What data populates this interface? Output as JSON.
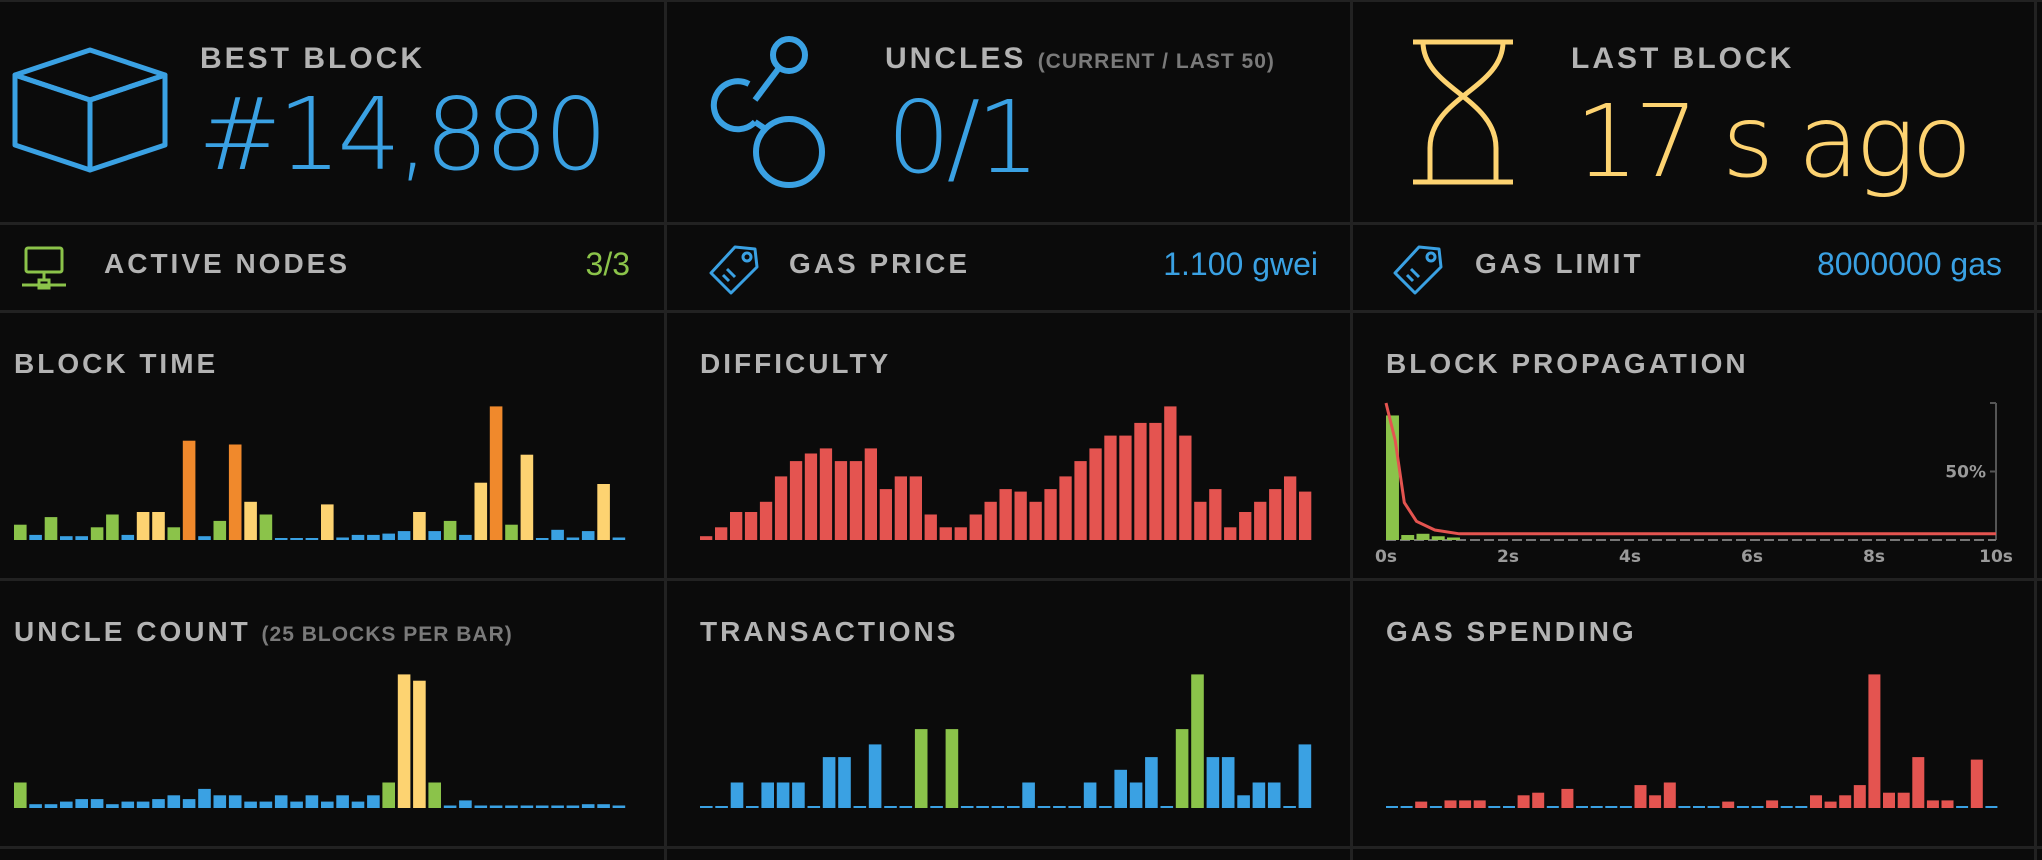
{
  "colors": {
    "blue": "#3aa1e3",
    "green": "#8bc34a",
    "orange": "#f0892c",
    "yellow": "#fdd371",
    "red": "#e45450",
    "dim": "#7a7a7a"
  },
  "stats": {
    "best_block": {
      "label": "BEST BLOCK",
      "value": "#14,880",
      "icon": "cube-icon"
    },
    "uncles": {
      "label": "UNCLES",
      "sublabel": "(CURRENT / LAST 50)",
      "value": "0/1",
      "icon": "uncles-icon"
    },
    "last_block": {
      "label": "LAST BLOCK",
      "value": "17 s ago",
      "icon": "hourglass-icon"
    }
  },
  "info": {
    "active_nodes": {
      "label": "ACTIVE NODES",
      "value": "3/3",
      "icon": "network-icon"
    },
    "gas_price": {
      "label": "GAS PRICE",
      "value": "1.100 gwei",
      "icon": "tag-icon"
    },
    "gas_limit": {
      "label": "GAS LIMIT",
      "value": "8000000 gas",
      "icon": "tag-icon"
    }
  },
  "chart_data": [
    {
      "id": "block_time",
      "type": "bar",
      "title": "BLOCK TIME",
      "values": [
        12,
        4,
        18,
        3,
        3,
        10,
        20,
        4,
        22,
        22,
        10,
        78,
        3,
        15,
        75,
        30,
        20,
        1,
        1,
        1,
        28,
        2,
        4,
        4,
        5,
        7,
        22,
        7,
        15,
        4,
        45,
        105,
        12,
        67,
        1,
        8,
        2,
        7,
        44,
        2
      ],
      "colors": [
        "green",
        "blue",
        "green",
        "blue",
        "blue",
        "green",
        "green",
        "blue",
        "yellow",
        "yellow",
        "green",
        "orange",
        "blue",
        "green",
        "orange",
        "yellow",
        "green",
        "blue",
        "blue",
        "blue",
        "yellow",
        "blue",
        "blue",
        "blue",
        "blue",
        "blue",
        "yellow",
        "blue",
        "green",
        "blue",
        "yellow",
        "orange",
        "green",
        "yellow",
        "blue",
        "blue",
        "blue",
        "blue",
        "yellow",
        "blue"
      ]
    },
    {
      "id": "difficulty",
      "type": "bar",
      "title": "DIFFICULTY",
      "values": [
        3,
        10,
        22,
        22,
        30,
        50,
        62,
        68,
        72,
        62,
        62,
        72,
        40,
        50,
        50,
        20,
        10,
        10,
        20,
        30,
        40,
        38,
        30,
        40,
        50,
        62,
        72,
        82,
        82,
        92,
        92,
        105,
        82,
        30,
        40,
        10,
        22,
        30,
        40,
        50,
        38
      ],
      "colors": [
        "red"
      ]
    },
    {
      "id": "block_propagation",
      "type": "histogram",
      "title": "BLOCK PROPAGATION",
      "x_ticks": [
        "0s",
        "2s",
        "4s",
        "6s",
        "8s",
        "10s"
      ],
      "y_tick": "50%",
      "bars": [
        {
          "x": 0.0,
          "value": 100,
          "color": "green"
        },
        {
          "x": 0.25,
          "value": 4,
          "color": "green"
        },
        {
          "x": 0.5,
          "value": 5,
          "color": "green"
        },
        {
          "x": 0.75,
          "value": 3,
          "color": "green"
        },
        {
          "x": 1.0,
          "value": 2,
          "color": "green"
        }
      ],
      "curve": [
        [
          0.0,
          110
        ],
        [
          0.15,
          80
        ],
        [
          0.3,
          30
        ],
        [
          0.5,
          15
        ],
        [
          0.8,
          8
        ],
        [
          1.2,
          5
        ],
        [
          2,
          5
        ],
        [
          4,
          5
        ],
        [
          6,
          5
        ],
        [
          8,
          5
        ],
        [
          10,
          5
        ]
      ]
    },
    {
      "id": "uncle_count",
      "type": "bar",
      "title": "UNCLE COUNT",
      "subtitle": "(25 BLOCKS PER BAR)",
      "values": [
        20,
        3,
        3,
        5,
        7,
        7,
        3,
        5,
        5,
        7,
        10,
        7,
        15,
        10,
        10,
        5,
        5,
        10,
        5,
        10,
        5,
        10,
        5,
        10,
        20,
        105,
        100,
        20,
        2,
        6,
        2,
        2,
        2,
        2,
        2,
        2,
        2,
        3,
        3,
        2
      ],
      "colors": [
        "green",
        "blue",
        "blue",
        "blue",
        "blue",
        "blue",
        "blue",
        "blue",
        "blue",
        "blue",
        "blue",
        "blue",
        "blue",
        "blue",
        "blue",
        "blue",
        "blue",
        "blue",
        "blue",
        "blue",
        "blue",
        "blue",
        "blue",
        "blue",
        "green",
        "yellow",
        "yellow",
        "green",
        "blue",
        "blue",
        "blue",
        "blue",
        "blue",
        "blue",
        "blue",
        "blue",
        "blue",
        "blue",
        "blue",
        "blue"
      ]
    },
    {
      "id": "transactions",
      "type": "bar",
      "title": "TRANSACTIONS",
      "values": [
        1,
        1,
        20,
        1,
        20,
        20,
        20,
        1,
        40,
        40,
        1,
        50,
        1,
        1,
        62,
        1,
        62,
        1,
        1,
        1,
        1,
        20,
        1,
        1,
        1,
        20,
        1,
        30,
        20,
        40,
        1,
        62,
        105,
        40,
        40,
        10,
        20,
        20,
        1,
        50
      ],
      "colors": [
        "blue",
        "blue",
        "blue",
        "blue",
        "blue",
        "blue",
        "blue",
        "blue",
        "blue",
        "blue",
        "blue",
        "blue",
        "blue",
        "blue",
        "green",
        "blue",
        "green",
        "blue",
        "blue",
        "blue",
        "blue",
        "blue",
        "blue",
        "blue",
        "blue",
        "blue",
        "blue",
        "blue",
        "blue",
        "blue",
        "blue",
        "green",
        "green",
        "blue",
        "blue",
        "blue",
        "blue",
        "blue",
        "blue",
        "blue"
      ]
    },
    {
      "id": "gas_spending",
      "type": "bar",
      "title": "GAS SPENDING",
      "values": [
        1,
        1,
        5,
        1,
        6,
        6,
        6,
        1,
        1,
        10,
        12,
        1,
        15,
        1,
        1,
        1,
        1,
        18,
        10,
        20,
        1,
        1,
        1,
        5,
        1,
        1,
        6,
        1,
        1,
        10,
        5,
        10,
        18,
        105,
        12,
        12,
        40,
        6,
        6,
        1,
        38,
        1
      ],
      "colors": [
        "blue",
        "blue",
        "red",
        "blue",
        "red",
        "red",
        "red",
        "blue",
        "blue",
        "red",
        "red",
        "blue",
        "red",
        "blue",
        "blue",
        "blue",
        "blue",
        "red",
        "red",
        "red",
        "blue",
        "blue",
        "blue",
        "red",
        "blue",
        "blue",
        "red",
        "blue",
        "blue",
        "red",
        "red",
        "red",
        "red",
        "red",
        "red",
        "red",
        "red",
        "red",
        "red",
        "blue",
        "red",
        "blue"
      ]
    }
  ]
}
